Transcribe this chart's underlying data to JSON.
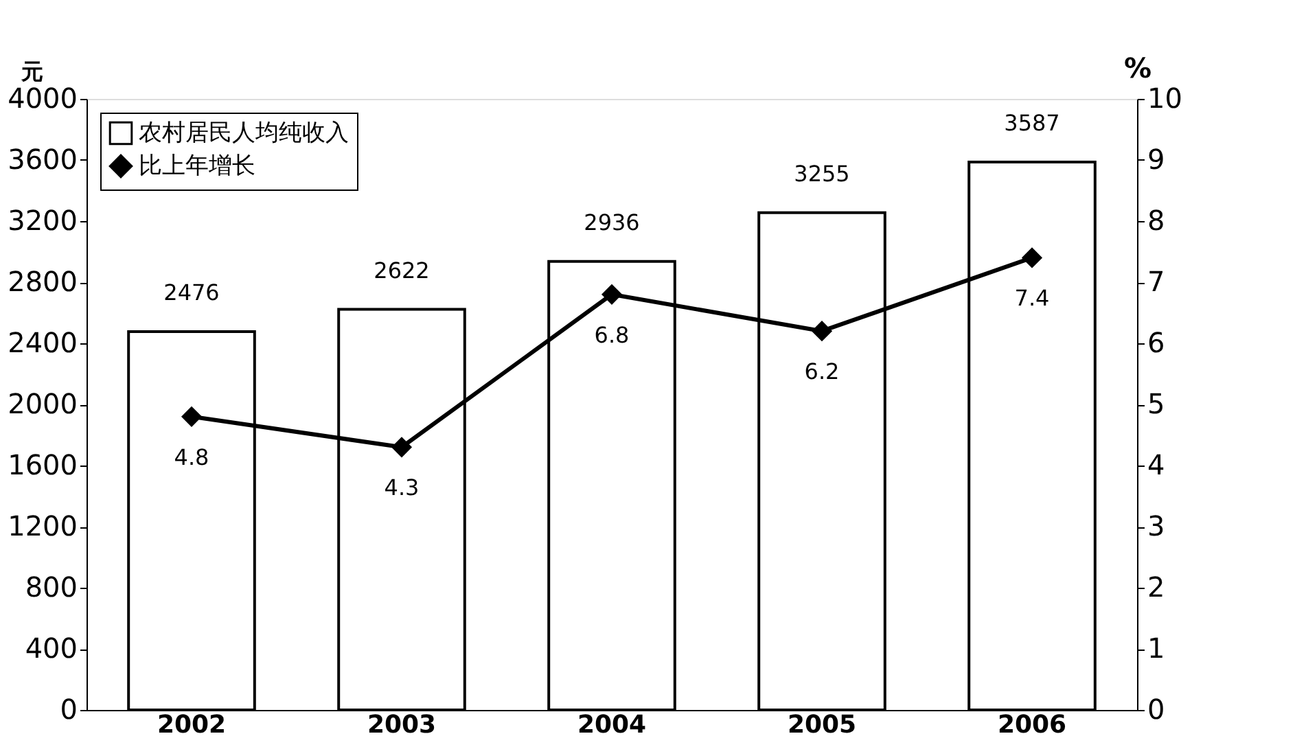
{
  "chart_data": {
    "type": "bar",
    "categories": [
      "2002",
      "2003",
      "2004",
      "2005",
      "2006"
    ],
    "ylabel": "元",
    "y2label": "%",
    "series": [
      {
        "name": "农村居民人均纯收入",
        "color": "#ffffff",
        "values": [
          2476,
          2622,
          2936,
          3255,
          3587
        ]
      },
      {
        "name": "比上年增长",
        "type": "line",
        "axis": "y2",
        "color": "#000000",
        "values": [
          4.8,
          4.3,
          6.8,
          6.2,
          7.4
        ]
      }
    ],
    "ylim": [
      0,
      4000
    ],
    "yticks": [
      0,
      400,
      800,
      1200,
      1600,
      2000,
      2400,
      2800,
      3200,
      3600,
      4000
    ],
    "y2lim": [
      0,
      10
    ],
    "y2ticks": [
      0,
      1,
      2,
      3,
      4,
      5,
      6,
      7,
      8,
      9,
      10
    ],
    "data_labels": true,
    "legend": "top left",
    "grid": false,
    "marker": "diamond",
    "line_style": "solid"
  }
}
